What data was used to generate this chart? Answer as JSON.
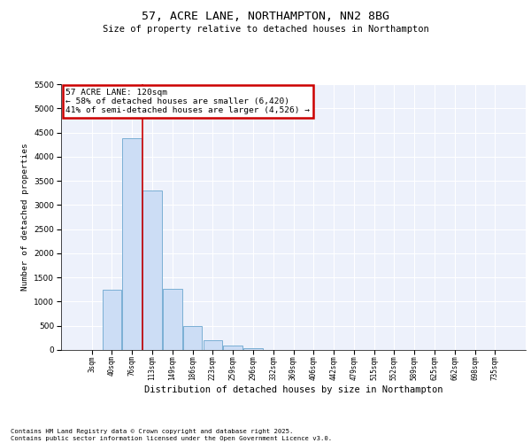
{
  "title1": "57, ACRE LANE, NORTHAMPTON, NN2 8BG",
  "title2": "Size of property relative to detached houses in Northampton",
  "xlabel": "Distribution of detached houses by size in Northampton",
  "ylabel": "Number of detached properties",
  "categories": [
    "3sqm",
    "40sqm",
    "76sqm",
    "113sqm",
    "149sqm",
    "186sqm",
    "223sqm",
    "259sqm",
    "296sqm",
    "332sqm",
    "369sqm",
    "406sqm",
    "442sqm",
    "479sqm",
    "515sqm",
    "552sqm",
    "589sqm",
    "625sqm",
    "662sqm",
    "698sqm",
    "735sqm"
  ],
  "values": [
    0,
    1250,
    4390,
    3300,
    1260,
    490,
    205,
    90,
    45,
    0,
    0,
    0,
    0,
    0,
    0,
    0,
    0,
    0,
    0,
    0,
    0
  ],
  "bar_color": "#ccddf5",
  "bar_edge_color": "#7aafd4",
  "vline_x": 2.5,
  "vline_color": "#cc0000",
  "annotation_text": "57 ACRE LANE: 120sqm\n← 58% of detached houses are smaller (6,420)\n41% of semi-detached houses are larger (4,526) →",
  "annotation_box_color": "#cc0000",
  "ylim": [
    0,
    5500
  ],
  "yticks": [
    0,
    500,
    1000,
    1500,
    2000,
    2500,
    3000,
    3500,
    4000,
    4500,
    5000,
    5500
  ],
  "background_color": "#edf1fb",
  "grid_color": "#ffffff",
  "footer1": "Contains HM Land Registry data © Crown copyright and database right 2025.",
  "footer2": "Contains public sector information licensed under the Open Government Licence v3.0."
}
